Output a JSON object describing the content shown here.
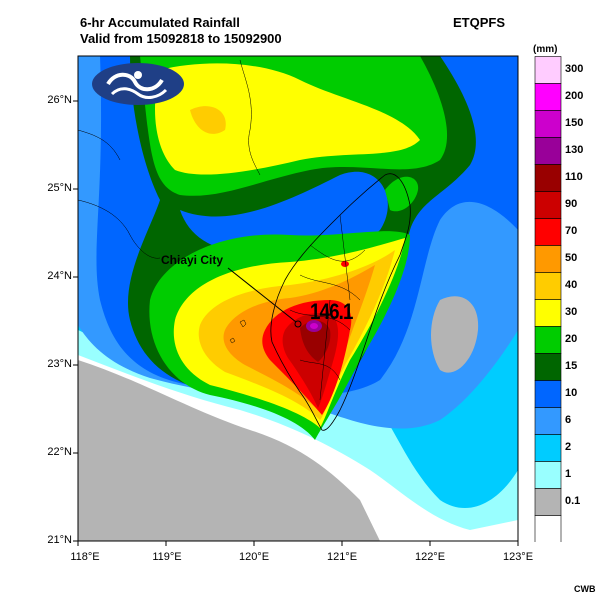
{
  "title_line1": "6-hr Accumulated Rainfall",
  "title_line2": "Valid from 15092818 to 15092900",
  "model_name": "ETQPFS",
  "credit": "CWB",
  "legend": {
    "unit": "(mm)",
    "levels": [
      {
        "label": "300",
        "color": "#ffccff"
      },
      {
        "label": "200",
        "color": "#ff00ff"
      },
      {
        "label": "150",
        "color": "#cc00cc"
      },
      {
        "label": "130",
        "color": "#990099"
      },
      {
        "label": "110",
        "color": "#990000"
      },
      {
        "label": "90",
        "color": "#cc0000"
      },
      {
        "label": "70",
        "color": "#ff0000"
      },
      {
        "label": "50",
        "color": "#ff9900"
      },
      {
        "label": "40",
        "color": "#ffcc00"
      },
      {
        "label": "30",
        "color": "#ffff00"
      },
      {
        "label": "20",
        "color": "#00cc00"
      },
      {
        "label": "15",
        "color": "#006600"
      },
      {
        "label": "10",
        "color": "#0066ff"
      },
      {
        "label": "6",
        "color": "#3399ff"
      },
      {
        "label": "2",
        "color": "#00ccff"
      },
      {
        "label": "1",
        "color": "#99ffff"
      },
      {
        "label": "0.1",
        "color": "#b4b4b4"
      },
      {
        "label": "",
        "color": "#ffffff"
      }
    ]
  },
  "axes": {
    "lat_labels": [
      "26°N",
      "25°N",
      "24°N",
      "23°N",
      "22°N",
      "21°N"
    ],
    "lon_labels": [
      "118°E",
      "119°E",
      "120°E",
      "121°E",
      "122°E",
      "123°E"
    ]
  },
  "annotation": {
    "place_label": "Chiayi City",
    "peak_value": "146.1"
  }
}
